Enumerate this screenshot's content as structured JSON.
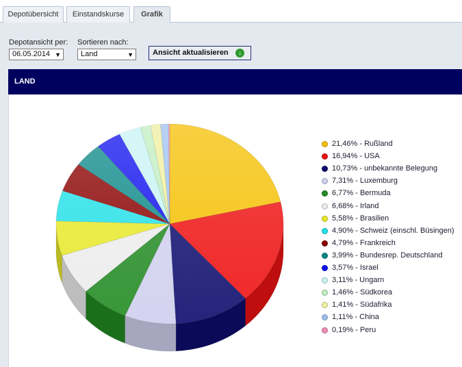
{
  "tabs": [
    {
      "label": "Depotübersicht",
      "active": false
    },
    {
      "label": "Einstandskurse",
      "active": false
    },
    {
      "label": "Grafik",
      "active": true
    }
  ],
  "filters": {
    "depot_label": "Depotansicht per:",
    "depot_value": "06.05.2014",
    "sort_label": "Sortieren nach:",
    "sort_value": "Land",
    "refresh_label": "Ansicht aktualisieren"
  },
  "section": {
    "title": "LAND"
  },
  "chart_data": {
    "type": "pie",
    "title": "",
    "slices": [
      {
        "label": "21,46% - Rußland",
        "name": "Rußland",
        "value": 21.46,
        "color": "#f5c000"
      },
      {
        "label": "16,94% - USA",
        "name": "USA",
        "value": 16.94,
        "color": "#ee1111"
      },
      {
        "label": "10,73% - unbekannte Belegung",
        "name": "unbekannte Belegung",
        "value": 10.73,
        "color": "#0c0c6e"
      },
      {
        "label": "7,31% - Luxemburg",
        "name": "Luxemburg",
        "value": 7.31,
        "color": "#cfcfee"
      },
      {
        "label": "6,77% - Bermuda",
        "name": "Bermuda",
        "value": 6.77,
        "color": "#228b22"
      },
      {
        "label": "6,68% - Irland",
        "name": "Irland",
        "value": 6.68,
        "color": "#ececec"
      },
      {
        "label": "5,58% - Brasilien",
        "name": "Brasilien",
        "value": 5.58,
        "color": "#e8e82a"
      },
      {
        "label": "4,90% - Schweiz (einschl. Büsingen)",
        "name": "Schweiz (einschl. Büsingen)",
        "value": 4.9,
        "color": "#22e0e8"
      },
      {
        "label": "4,79% - Frankreich",
        "name": "Frankreich",
        "value": 4.79,
        "color": "#8b0000"
      },
      {
        "label": "3,99% - Bundesrep. Deutschland",
        "name": "Bundesrep. Deutschland",
        "value": 3.99,
        "color": "#0b8888"
      },
      {
        "label": "3,57% - Israel",
        "name": "Israel",
        "value": 3.57,
        "color": "#1010ee"
      },
      {
        "label": "3,11% - Ungarn",
        "name": "Ungarn",
        "value": 3.11,
        "color": "#c8f4f4"
      },
      {
        "label": "1,46% - Südkorea",
        "name": "Südkorea",
        "value": 1.46,
        "color": "#c0eec0"
      },
      {
        "label": "1,41% - Südafrika",
        "name": "Südafrika",
        "value": 1.41,
        "color": "#f0f0a0"
      },
      {
        "label": "1,11% - China",
        "name": "China",
        "value": 1.11,
        "color": "#9ec2ee"
      },
      {
        "label": "0,19% - Peru",
        "name": "Peru",
        "value": 0.19,
        "color": "#f08cb4"
      }
    ]
  }
}
